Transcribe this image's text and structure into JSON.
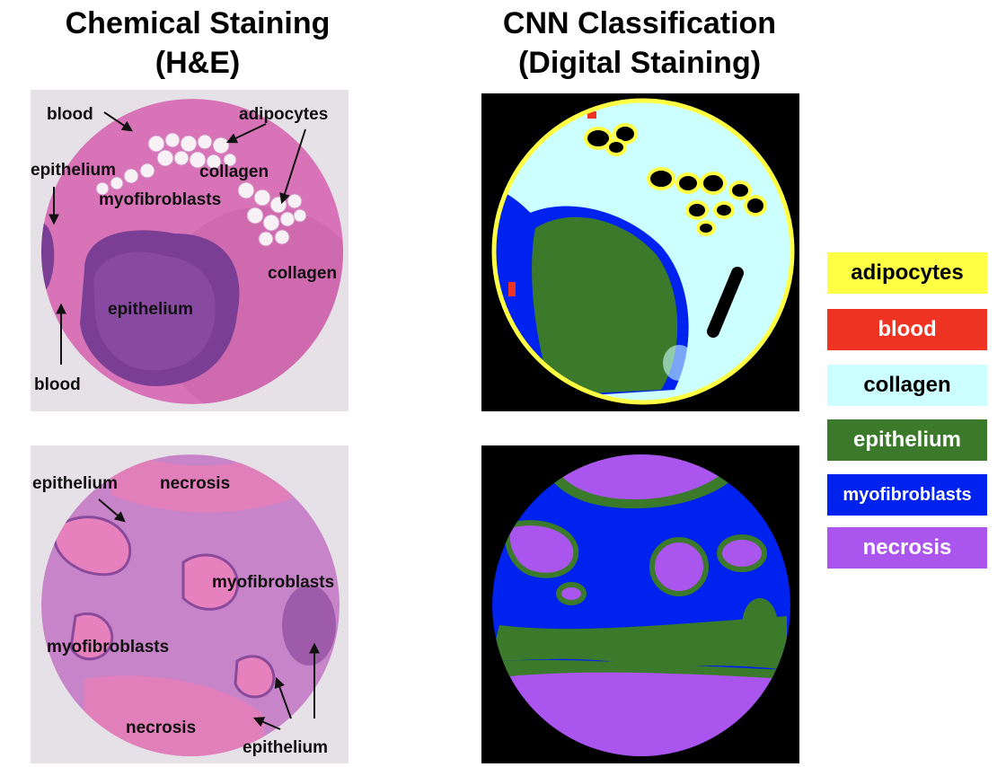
{
  "titles": {
    "left_line1": "Chemical Staining",
    "left_line2": "(H&E)",
    "right_line1": "CNN Classification",
    "right_line2": "(Digital Staining)"
  },
  "top_he_labels": {
    "blood_top": "blood",
    "adipocytes": "adipocytes",
    "epithelium_left": "epithelium",
    "collagen_mid": "collagen",
    "myofibroblasts": "myofibroblasts",
    "collagen_right": "collagen",
    "epithelium_center": "epithelium",
    "blood_bottom": "blood"
  },
  "bottom_he_labels": {
    "epithelium_top": "epithelium",
    "necrosis_top": "necrosis",
    "myofibroblasts_right": "myofibroblasts",
    "myofibroblasts_left": "myofibroblasts",
    "necrosis_bottom": "necrosis",
    "epithelium_bottom": "epithelium"
  },
  "legend": [
    {
      "label": "adipocytes",
      "bg": "#ffff44",
      "fg": "#000000"
    },
    {
      "label": "blood",
      "bg": "#ee3322",
      "fg": "#ffffff"
    },
    {
      "label": "collagen",
      "bg": "#ccffff",
      "fg": "#000000"
    },
    {
      "label": "epithelium",
      "bg": "#3a7a2a",
      "fg": "#ffffff"
    },
    {
      "label": "myofibroblasts",
      "bg": "#0022ee",
      "fg": "#ffffff"
    },
    {
      "label": "necrosis",
      "bg": "#aa55ee",
      "fg": "#ffffff"
    }
  ]
}
